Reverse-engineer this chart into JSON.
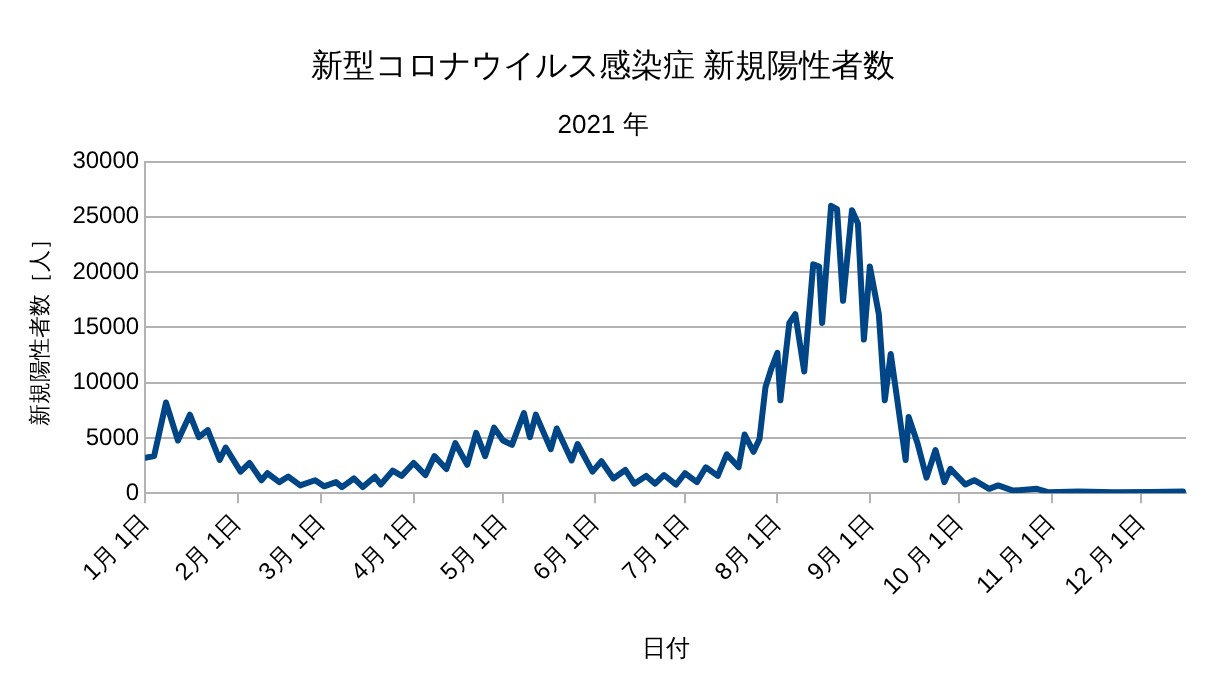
{
  "chart_data": {
    "type": "line",
    "title": "新型コロナウイルス感染症 新規陽性者数",
    "subtitle": "2021 年",
    "xlabel": "日付",
    "ylabel": "新規陽性者数［人］",
    "x": [
      "2021-01-01",
      "2021-01-04",
      "2021-01-08",
      "2021-01-12",
      "2021-01-16",
      "2021-01-19",
      "2021-01-22",
      "2021-01-26",
      "2021-01-28",
      "2021-02-02",
      "2021-02-05",
      "2021-02-09",
      "2021-02-11",
      "2021-02-15",
      "2021-02-18",
      "2021-02-22",
      "2021-02-27",
      "2021-03-02",
      "2021-03-06",
      "2021-03-08",
      "2021-03-12",
      "2021-03-15",
      "2021-03-19",
      "2021-03-21",
      "2021-03-25",
      "2021-03-28",
      "2021-04-01",
      "2021-04-05",
      "2021-04-08",
      "2021-04-12",
      "2021-04-15",
      "2021-04-19",
      "2021-04-22",
      "2021-04-25",
      "2021-04-28",
      "2021-05-01",
      "2021-05-04",
      "2021-05-08",
      "2021-05-10",
      "2021-05-12",
      "2021-05-17",
      "2021-05-19",
      "2021-05-24",
      "2021-05-26",
      "2021-05-31",
      "2021-06-03",
      "2021-06-07",
      "2021-06-11",
      "2021-06-14",
      "2021-06-18",
      "2021-06-21",
      "2021-06-24",
      "2021-06-28",
      "2021-07-01",
      "2021-07-05",
      "2021-07-08",
      "2021-07-12",
      "2021-07-15",
      "2021-07-19",
      "2021-07-21",
      "2021-07-24",
      "2021-07-26",
      "2021-07-28",
      "2021-07-30",
      "2021-08-01",
      "2021-08-02",
      "2021-08-05",
      "2021-08-07",
      "2021-08-10",
      "2021-08-13",
      "2021-08-15",
      "2021-08-16",
      "2021-08-19",
      "2021-08-21",
      "2021-08-23",
      "2021-08-26",
      "2021-08-28",
      "2021-08-30",
      "2021-09-01",
      "2021-09-04",
      "2021-09-06",
      "2021-09-08",
      "2021-09-10",
      "2021-09-13",
      "2021-09-14",
      "2021-09-17",
      "2021-09-20",
      "2021-09-23",
      "2021-09-26",
      "2021-09-28",
      "2021-10-03",
      "2021-10-06",
      "2021-10-11",
      "2021-10-14",
      "2021-10-19",
      "2021-10-27",
      "2021-10-31",
      "2021-11-10",
      "2021-11-22",
      "2021-12-04",
      "2021-12-15"
    ],
    "series": [
      {
        "color": "#004586",
        "values": [
          3200,
          3350,
          8200,
          4760,
          7100,
          5070,
          5700,
          3000,
          4130,
          1950,
          2730,
          1170,
          1800,
          1000,
          1500,
          700,
          1170,
          620,
          1000,
          550,
          1330,
          550,
          1480,
          780,
          2030,
          1560,
          2730,
          1640,
          3350,
          2180,
          4520,
          2570,
          5460,
          3350,
          5930,
          4760,
          4370,
          7250,
          5070,
          7100,
          3980,
          5850,
          2960,
          4450,
          1950,
          2890,
          1330,
          2100,
          860,
          1560,
          860,
          1640,
          780,
          1800,
          1000,
          2340,
          1560,
          3510,
          2340,
          5300,
          3740,
          4900,
          9600,
          11300,
          12700,
          8400,
          15400,
          16200,
          11000,
          20700,
          20500,
          15400,
          26000,
          25700,
          17400,
          25600,
          24400,
          13900,
          20500,
          16200,
          8400,
          12600,
          8800,
          3000,
          6900,
          4500,
          1400,
          3900,
          1000,
          2200,
          780,
          1170,
          390,
          700,
          230,
          390,
          80,
          150,
          80,
          100,
          150
        ]
      }
    ],
    "xlim": [
      "2021-01-01",
      "2021-12-16"
    ],
    "xticks": [
      {
        "value": "2021-01-01",
        "label": "1月 1日"
      },
      {
        "value": "2021-02-01",
        "label": "2月 1日"
      },
      {
        "value": "2021-03-01",
        "label": "3月 1日"
      },
      {
        "value": "2021-04-01",
        "label": "4月 1日"
      },
      {
        "value": "2021-05-01",
        "label": "5月 1日"
      },
      {
        "value": "2021-06-01",
        "label": "6月 1日"
      },
      {
        "value": "2021-07-01",
        "label": "7月 1日"
      },
      {
        "value": "2021-08-01",
        "label": "8月 1日"
      },
      {
        "value": "2021-09-01",
        "label": "9月 1日"
      },
      {
        "value": "2021-10-01",
        "label": "10 月 1日"
      },
      {
        "value": "2021-11-01",
        "label": "11 月 1日"
      },
      {
        "value": "2021-12-01",
        "label": "12 月 1日"
      }
    ],
    "ylim": [
      0,
      30000
    ],
    "yticks": [
      0,
      5000,
      10000,
      15000,
      20000,
      25000,
      30000
    ],
    "grid": "y",
    "legend": false,
    "marker": "none",
    "line_style": "solid"
  }
}
